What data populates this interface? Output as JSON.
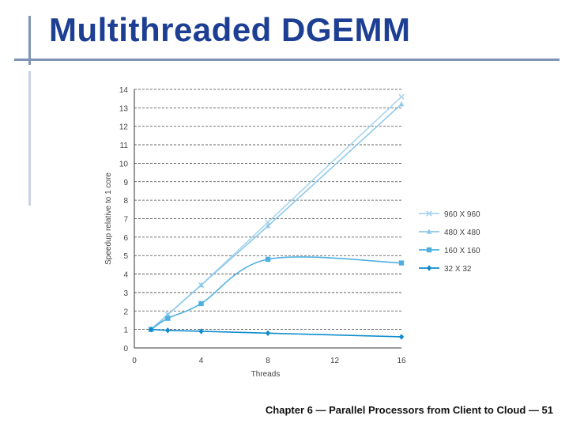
{
  "slide": {
    "title": "Multithreaded DGEMM",
    "footer": "Chapter 6 — Parallel Processors from Client to Cloud — 51"
  },
  "colors": {
    "title": "#1d3f93",
    "rule": "#7f93b5",
    "series": [
      "#a9d4ef",
      "#8cc8ea",
      "#4fb0e0",
      "#0f8ccc"
    ]
  },
  "chart_data": {
    "type": "line",
    "title": "",
    "xlabel": "Threads",
    "ylabel": "Speedup relative to 1 core",
    "xlim": [
      0,
      16
    ],
    "ylim": [
      0,
      14
    ],
    "xticks": [
      0,
      4,
      8,
      12,
      16
    ],
    "yticks": [
      1,
      2,
      3,
      4,
      5,
      6,
      7,
      8,
      9,
      10,
      11,
      12,
      13,
      14
    ],
    "grid": "horizontal dashed",
    "legend_position": "right",
    "series": [
      {
        "name": "960 X 960",
        "marker": "x",
        "x": [
          1,
          2,
          4,
          8,
          16
        ],
        "y": [
          1.0,
          1.8,
          3.4,
          6.8,
          13.6
        ]
      },
      {
        "name": "480 X 480",
        "marker": "triangle",
        "x": [
          1,
          2,
          4,
          8,
          16
        ],
        "y": [
          1.0,
          1.8,
          3.4,
          6.6,
          13.2
        ]
      },
      {
        "name": "160 X 160",
        "marker": "square",
        "x": [
          1,
          2,
          4,
          8,
          16
        ],
        "y": [
          1.0,
          1.6,
          2.4,
          4.8,
          4.6
        ]
      },
      {
        "name": "32 X 32",
        "marker": "diamond",
        "x": [
          1,
          2,
          4,
          8,
          16
        ],
        "y": [
          1.0,
          0.95,
          0.9,
          0.8,
          0.6
        ]
      }
    ]
  }
}
